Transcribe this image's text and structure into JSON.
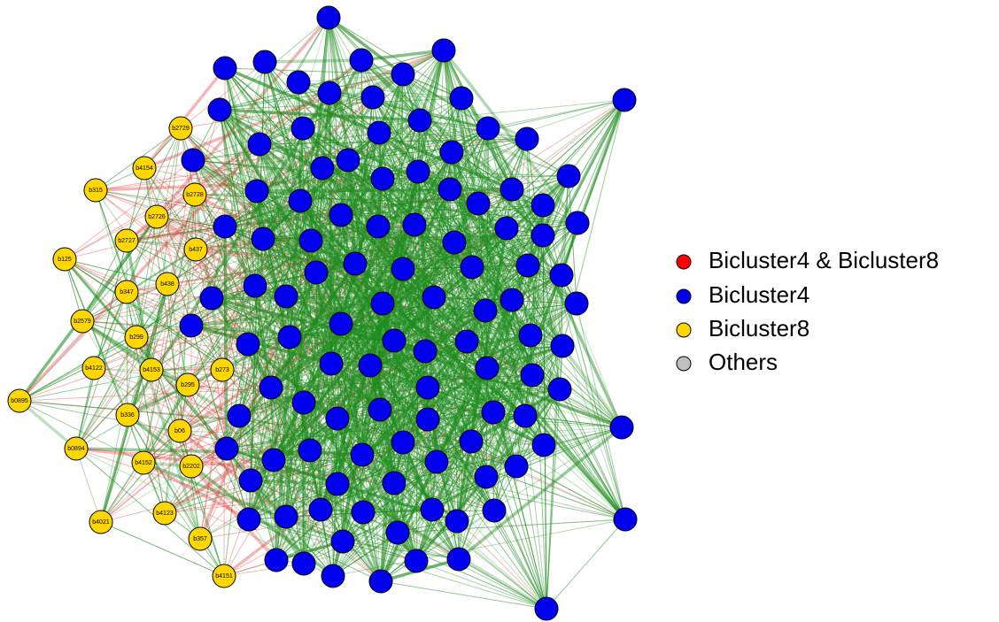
{
  "nodes": [
    {
      "label": "b2729"
    },
    {
      "label": "b4154"
    },
    {
      "label": "b315"
    },
    {
      "label": "b2728"
    },
    {
      "label": "b2726"
    },
    {
      "label": "b2727"
    },
    {
      "label": "b437"
    },
    {
      "label": "b125"
    },
    {
      "label": "b347"
    },
    {
      "label": "b438"
    },
    {
      "label": "b2579"
    },
    {
      "label": "b299"
    },
    {
      "label": "b4122"
    },
    {
      "label": "b4153"
    },
    {
      "label": "b295"
    },
    {
      "label": "b273"
    },
    {
      "label": "b0895"
    },
    {
      "label": "b336"
    },
    {
      "label": "b06"
    },
    {
      "label": "b0894"
    },
    {
      "label": "b4152"
    },
    {
      "label": "b2202"
    },
    {
      "label": "b4123"
    },
    {
      "label": "b4021"
    },
    {
      "label": "b357"
    },
    {
      "label": "b4151"
    }
  ],
  "node_color": "#ffd700",
  "other_node_color": "#0000ee",
  "legend": [
    {
      "label": "Bicluster4 & Bicluster8",
      "color": "#ff0000"
    },
    {
      "label": "Bicluster4",
      "color": "#0000ee"
    },
    {
      "label": "Bicluster8",
      "color": "#ffd700"
    },
    {
      "label": "Others",
      "color": "#c0c0c0"
    }
  ]
}
